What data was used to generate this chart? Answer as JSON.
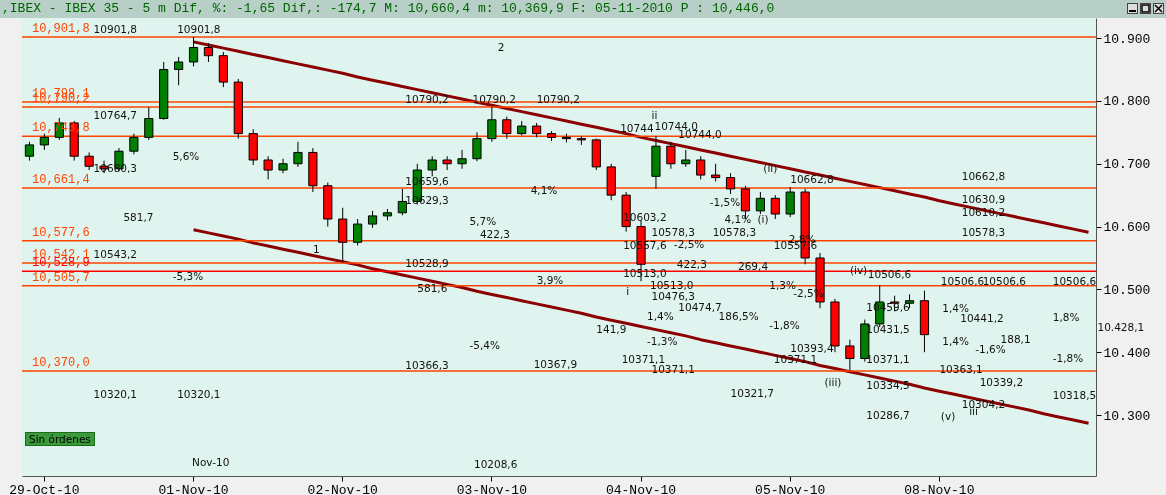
{
  "chart_data": {
    "type": "candlestick",
    "title": ",IBEX - IBEX 35 - 5 m Dif, %: -1,65 Dif,: -174,7 M: 10,660,4 m: 10,369,9 F: 05-11-2010 P : 10,446,0",
    "categories": [
      null,
      "29-Oct-10",
      null,
      null,
      null,
      null,
      null,
      null,
      null,
      null,
      null,
      "01-Nov-10",
      null,
      null,
      null,
      null,
      null,
      null,
      null,
      null,
      null,
      "02-Nov-10",
      null,
      null,
      null,
      null,
      null,
      null,
      null,
      null,
      null,
      "03-Nov-10",
      null,
      null,
      null,
      null,
      null,
      null,
      null,
      null,
      null,
      "04-Nov-10",
      null,
      null,
      null,
      null,
      null,
      null,
      null,
      null,
      null,
      "05-Nov-10",
      null,
      null,
      null,
      null,
      null,
      null,
      null,
      null,
      null,
      "08-Nov-10",
      null,
      null,
      null,
      null,
      null,
      null,
      null,
      null,
      null,
      null
    ],
    "ohlc": [
      [
        10712,
        10735,
        10705,
        10730
      ],
      [
        10730,
        10748,
        10722,
        10742
      ],
      [
        10742,
        10773,
        10738,
        10765
      ],
      [
        10765,
        10768,
        10705,
        10712
      ],
      [
        10712,
        10718,
        10690,
        10696
      ],
      [
        10696,
        10705,
        10685,
        10692
      ],
      [
        10692,
        10725,
        10688,
        10720
      ],
      [
        10720,
        10748,
        10715,
        10742
      ],
      [
        10742,
        10790,
        10738,
        10772
      ],
      [
        10772,
        10862,
        10770,
        10850
      ],
      [
        10850,
        10870,
        10825,
        10862
      ],
      [
        10862,
        10901.8,
        10855,
        10885
      ],
      [
        10885,
        10892,
        10862,
        10872
      ],
      [
        10872,
        10878,
        10822,
        10830
      ],
      [
        10830,
        10835,
        10740,
        10748
      ],
      [
        10748,
        10755,
        10698,
        10706
      ],
      [
        10706,
        10712,
        10675,
        10690
      ],
      [
        10690,
        10708,
        10685,
        10700
      ],
      [
        10700,
        10735,
        10695,
        10718
      ],
      [
        10718,
        10725,
        10655,
        10665
      ],
      [
        10665,
        10670,
        10600,
        10612
      ],
      [
        10612,
        10630,
        10543.2,
        10575
      ],
      [
        10575,
        10612,
        10570,
        10604
      ],
      [
        10604,
        10625,
        10598,
        10617
      ],
      [
        10617,
        10628,
        10610,
        10622
      ],
      [
        10622,
        10660,
        10618,
        10640
      ],
      [
        10640,
        10700,
        10635,
        10690
      ],
      [
        10690,
        10712,
        10680,
        10706
      ],
      [
        10706,
        10712,
        10690,
        10700
      ],
      [
        10700,
        10722,
        10692,
        10708
      ],
      [
        10708,
        10750,
        10704,
        10740
      ],
      [
        10740,
        10790.2,
        10735,
        10770
      ],
      [
        10770,
        10775,
        10740,
        10748
      ],
      [
        10748,
        10768,
        10745,
        10760
      ],
      [
        10760,
        10765,
        10742,
        10748
      ],
      [
        10748,
        10752,
        10736,
        10742
      ],
      [
        10742,
        10748,
        10734,
        10740
      ],
      [
        10740,
        10744,
        10730,
        10738
      ],
      [
        10738,
        10740,
        10690,
        10695
      ],
      [
        10695,
        10700,
        10642,
        10650
      ],
      [
        10650,
        10655,
        10592,
        10600
      ],
      [
        10600,
        10610,
        10513,
        10540
      ],
      [
        10680,
        10744,
        10660,
        10728
      ],
      [
        10728,
        10735,
        10692,
        10700
      ],
      [
        10700,
        10722,
        10695,
        10706
      ],
      [
        10706,
        10712,
        10675,
        10682
      ],
      [
        10682,
        10700,
        10672,
        10678
      ],
      [
        10678,
        10685,
        10652,
        10660
      ],
      [
        10660,
        10665,
        10612,
        10625
      ],
      [
        10625,
        10655,
        10620,
        10645
      ],
      [
        10645,
        10650,
        10612,
        10620
      ],
      [
        10620,
        10662.8,
        10615,
        10655
      ],
      [
        10655,
        10660,
        10540,
        10550
      ],
      [
        10550,
        10558,
        10470,
        10480
      ],
      [
        10480,
        10485,
        10400,
        10410
      ],
      [
        10410,
        10420,
        10371.1,
        10390
      ],
      [
        10390,
        10452,
        10385,
        10445
      ],
      [
        10445,
        10506.6,
        10440,
        10480
      ],
      [
        10480,
        10490,
        10465,
        10478
      ],
      [
        10478,
        10492,
        10470,
        10482
      ],
      [
        10482,
        10498,
        10400,
        10428
      ],
      null,
      null,
      null,
      null,
      null,
      null,
      null,
      null,
      null,
      null,
      null
    ],
    "colors": [
      "#008000",
      "#008000",
      "#008000",
      "#ff0000",
      "#ff0000",
      "#ff0000",
      "#008000",
      "#008000",
      "#008000",
      "#008000",
      "#008000",
      "#008000",
      "#ff0000",
      "#ff0000",
      "#ff0000",
      "#ff0000",
      "#ff0000",
      "#008000",
      "#008000",
      "#ff0000",
      "#ff0000",
      "#ff0000",
      "#008000",
      "#008000",
      "#008000",
      "#008000",
      "#008000",
      "#008000",
      "#ff0000",
      "#008000",
      "#008000",
      "#008000",
      "#ff0000",
      "#008000",
      "#ff0000",
      "#ff0000",
      "#ff0000",
      "#ff0000",
      "#ff0000",
      "#ff0000",
      "#ff0000",
      "#ff0000",
      "#008000",
      "#ff0000",
      "#008000",
      "#ff0000",
      "#ff0000",
      "#ff0000",
      "#ff0000",
      "#008000",
      "#ff0000",
      "#008000",
      "#ff0000",
      "#ff0000",
      "#ff0000",
      "#ff0000",
      "#008000",
      "#008000",
      "#ff0000",
      "#008000",
      "#ff0000",
      null,
      null,
      null,
      null,
      null,
      null,
      null,
      null,
      null,
      null,
      null
    ],
    "series": [
      {
        "type": "line",
        "color": "#8b0000",
        "values": [
          null,
          null,
          null,
          null,
          null,
          null,
          null,
          null,
          null,
          null,
          null,
          10894,
          10889,
          10884,
          10879,
          10874,
          10869,
          10864,
          10859,
          10854,
          10849,
          10844,
          10838,
          10833,
          10828,
          10823,
          10818,
          10813,
          10808,
          10803,
          10798,
          10793,
          10788,
          10783,
          10778,
          10773,
          10768,
          10763,
          10758,
          10753,
          10748,
          10742,
          10737,
          10732,
          10727,
          10722,
          10717,
          10712,
          10707,
          10702,
          10697,
          10692,
          10687,
          10682,
          10677,
          10672,
          10667,
          10662,
          10657,
          10652,
          10647,
          10641,
          10636,
          10631,
          10626,
          10621,
          10616,
          10611,
          10606,
          10601,
          10596,
          10591
        ]
      },
      {
        "type": "line",
        "color": "#8b0000",
        "values": [
          null,
          null,
          null,
          null,
          null,
          null,
          null,
          null,
          null,
          null,
          null,
          10595,
          10590,
          10585,
          10580,
          10574,
          10569,
          10564,
          10559,
          10554,
          10549,
          10544,
          10539,
          10533,
          10528,
          10523,
          10518,
          10513,
          10508,
          10503,
          10497,
          10492,
          10487,
          10482,
          10477,
          10472,
          10467,
          10462,
          10456,
          10451,
          10446,
          10441,
          10436,
          10431,
          10426,
          10420,
          10415,
          10410,
          10405,
          10400,
          10395,
          10390,
          10385,
          10379,
          10374,
          10369,
          10364,
          10359,
          10354,
          10349,
          10343,
          10338,
          10333,
          10328,
          10323,
          10318,
          10313,
          10308,
          10302,
          10297,
          10292,
          10287
        ]
      }
    ],
    "ylim": [
      10203,
      10932
    ],
    "yticks": [
      {
        "value": 10300,
        "label": "10.300"
      },
      {
        "value": 10400,
        "label": "10.400"
      },
      {
        "value": 10500,
        "label": "10.500"
      },
      {
        "value": 10600,
        "label": "10.600"
      },
      {
        "value": 10700,
        "label": "10.700"
      },
      {
        "value": 10800,
        "label": "10.800"
      },
      {
        "value": 10900,
        "label": "10.900"
      }
    ],
    "ref_lines": [
      {
        "axis": "y",
        "value": 10901.8,
        "label": "10,901,8",
        "color": "#ff4500"
      },
      {
        "axis": "y",
        "value": 10798.1,
        "label": "10,798,1",
        "color": "#ff4500"
      },
      {
        "axis": "y",
        "value": 10790.2,
        "label": "10,790,2",
        "color": "#ff4500"
      },
      {
        "axis": "y",
        "value": 10743.8,
        "label": "10,743,8",
        "color": "#ff4500"
      },
      {
        "axis": "y",
        "value": 10661.4,
        "label": "10,661,4",
        "color": "#ff4500"
      },
      {
        "axis": "y",
        "value": 10577.6,
        "label": "10,577,6",
        "color": "#ff4500"
      },
      {
        "axis": "y",
        "value": 10542.1,
        "label": "10,542,1",
        "color": "#ff4500"
      },
      {
        "axis": "y",
        "value": 10528.9,
        "label": "10,528,9",
        "color": "#ff0000"
      },
      {
        "axis": "y",
        "value": 10505.7,
        "label": "10,505,7",
        "color": "#ff4500"
      },
      {
        "axis": "y",
        "value": 10370.0,
        "label": "10,370,0",
        "color": "#ff4500"
      }
    ],
    "annotations": [
      "Sin órdenes",
      "Nov-10",
      "10901,8",
      "10901,8",
      "10764,7",
      "10680,3",
      "5,6%",
      "581,7",
      "10543,2",
      "-5,3%",
      "10320,1",
      "10320,1",
      "1",
      "2",
      "10790,2",
      {
        "text": "10790,2",
        "y": 10790.2
      },
      "10790,2",
      "10659,6",
      "10629,3",
      "5,7%",
      "4,1%",
      "422,3",
      "10528,9",
      "581,6",
      "3,9%",
      "10366,3",
      "10367,9",
      "-5,4%",
      "10208,6",
      "ii",
      "i",
      "iii",
      {
        "text": "10744",
        "y": 10744
      },
      "10744,0",
      "10744,0",
      "10578,3",
      {
        "text": "10578,3",
        "y": 10578.3
      },
      "-1,5%",
      "10603,2",
      "10557,6",
      "-2,5%",
      "10513,0",
      "10513,0",
      "422,3",
      "10476,3",
      "10474,7",
      "1,4%",
      "186,5%",
      "141,9",
      "-1,3%",
      "10371,1",
      "10371,1",
      "10321,7",
      "4,1%",
      "(i)",
      "(ii)",
      "10662,8",
      "2,8%",
      {
        "text": "10557,6",
        "y": 10557.6
      },
      "-2,5%",
      "1,3%",
      "-1,8%",
      "269,4",
      "10393,4",
      "10371,1",
      "(iii)",
      "(iv)",
      "10506,6",
      "10506,6",
      "10506,6",
      "10506,6",
      "10371,1",
      {
        "text": "10459,6",
        "y": 10459.6
      },
      "10431,5",
      "10334,5",
      "10286,7",
      "(v)",
      "10363,1",
      "10339,2",
      "10304,2",
      "10318,5",
      "1,8%",
      "-1,8%",
      "188,1",
      "-1,6%",
      "1,4%",
      "1,4%",
      "10441,2",
      "10662,8",
      "10630,9",
      "10610,2",
      "10578,3",
      "10.428,1"
    ],
    "grid": false
  }
}
